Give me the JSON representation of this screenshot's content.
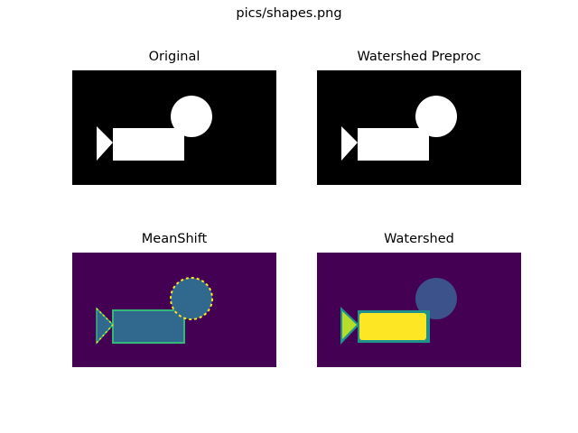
{
  "figure": {
    "suptitle": "pics/shapes.png"
  },
  "panels": [
    {
      "title": "Original",
      "style": "binary",
      "background": "#000000",
      "foreground": "#ffffff"
    },
    {
      "title": "Watershed Preproc",
      "style": "binary",
      "background": "#000000",
      "foreground": "#ffffff"
    },
    {
      "title": "MeanShift",
      "style": "labels",
      "background": "#440154",
      "region_fill": "#31688e",
      "edge_color": "#35b779",
      "boundary_color": "#fde725"
    },
    {
      "title": "Watershed",
      "style": "labels",
      "background": "#440154",
      "circle_fill": "#3b528b",
      "rect_fill": "#fde725",
      "rect_outline": "#21918c",
      "triangle_fill": "#b5de2b"
    }
  ]
}
